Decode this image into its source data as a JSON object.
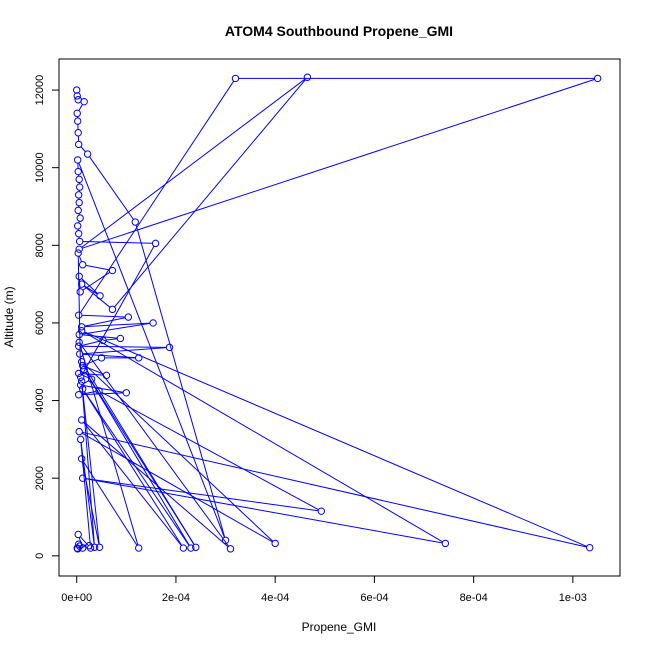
{
  "chart_data": {
    "type": "scatter",
    "title": "ATOM4 Southbound Propene_GMI",
    "xlabel": "Propene_GMI",
    "ylabel": "Altitude (m)",
    "xlim": [
      -3.57e-05,
      0.001095
    ],
    "ylim": [
      -520,
      12800
    ],
    "x_ticks": [
      {
        "value": 0,
        "label": "0e+00"
      },
      {
        "value": 0.0002,
        "label": "2e-04"
      },
      {
        "value": 0.0004,
        "label": "4e-04"
      },
      {
        "value": 0.0006,
        "label": "6e-04"
      },
      {
        "value": 0.0008,
        "label": "8e-04"
      },
      {
        "value": 0.001,
        "label": "1e-03"
      }
    ],
    "y_ticks": [
      {
        "value": 0,
        "label": "0"
      },
      {
        "value": 2000,
        "label": "2000"
      },
      {
        "value": 4000,
        "label": "4000"
      },
      {
        "value": 6000,
        "label": "6000"
      },
      {
        "value": 8000,
        "label": "8000"
      },
      {
        "value": 10000,
        "label": "10000"
      },
      {
        "value": 12000,
        "label": "12000"
      }
    ],
    "series": [
      {
        "color": "#0000ff",
        "marker": "open-circle",
        "connected": true,
        "points": [
          [
            0.0,
            12000
          ],
          [
            1e-06,
            11850
          ],
          [
            3e-06,
            11750
          ],
          [
            1.5e-05,
            11700
          ],
          [
            1e-06,
            11400
          ],
          [
            2e-06,
            11200
          ],
          [
            3e-06,
            10900
          ],
          [
            4e-06,
            10600
          ],
          [
            2.2e-05,
            10350
          ],
          [
            0.000118,
            8600
          ],
          [
            0.0003,
            400
          ],
          [
            2e-06,
            10200
          ],
          [
            3e-06,
            9900
          ],
          [
            5e-06,
            9700
          ],
          [
            6e-06,
            9500
          ],
          [
            4e-06,
            9300
          ],
          [
            5e-06,
            9100
          ],
          [
            3e-06,
            8900
          ],
          [
            7e-06,
            8700
          ],
          [
            2e-06,
            8500
          ],
          [
            4e-06,
            8300
          ],
          [
            6e-06,
            8100
          ],
          [
            0.000159,
            8050
          ],
          [
            8e-06,
            4600
          ],
          [
            3e-06,
            7800
          ],
          [
            1.2e-05,
            7500
          ],
          [
            7.2e-05,
            7350
          ],
          [
            7e-06,
            6800
          ],
          [
            5e-06,
            7200
          ],
          [
            4.7e-05,
            6700
          ],
          [
            1e-05,
            7000
          ],
          [
            7.2e-05,
            6350
          ],
          [
            0.000465,
            12330
          ],
          [
            5e-06,
            7900
          ],
          [
            0.00105,
            12300
          ],
          [
            0.00032,
            12300
          ],
          [
            4e-06,
            6200
          ],
          [
            0.000104,
            6150
          ],
          [
            1e-05,
            5900
          ],
          [
            0.000154,
            6000
          ],
          [
            5e-06,
            5700
          ],
          [
            8.8e-05,
            5600
          ],
          [
            5.3e-05,
            5550
          ],
          [
            4e-06,
            5400
          ],
          [
            0.000187,
            5370
          ],
          [
            6e-06,
            5200
          ],
          [
            0.000125,
            5100
          ],
          [
            5e-05,
            5100
          ],
          [
            1.2e-05,
            4900
          ],
          [
            6e-05,
            4650
          ],
          [
            4e-06,
            4700
          ],
          [
            3e-05,
            4550
          ],
          [
            8e-06,
            4400
          ],
          [
            0.0001,
            4200
          ],
          [
            4e-06,
            4150
          ],
          [
            4.5e-05,
            4250
          ],
          [
            0.000493,
            1150
          ],
          [
            1.2e-05,
            2000
          ],
          [
            0.000743,
            320
          ],
          [
            1e-05,
            5800
          ],
          [
            0.001034,
            210
          ],
          [
            5e-06,
            3200
          ],
          [
            0.0004,
            320
          ],
          [
            1e-05,
            5000
          ],
          [
            0.00024,
            220
          ],
          [
            1.5e-05,
            4800
          ],
          [
            0.00023,
            200
          ],
          [
            1.2e-05,
            4300
          ],
          [
            0.000215,
            200
          ],
          [
            1e-05,
            3500
          ],
          [
            0.00031,
            180
          ],
          [
            5e-06,
            5500
          ],
          [
            0.000125,
            200
          ],
          [
            1e-05,
            2500
          ],
          [
            4.6e-05,
            220
          ],
          [
            1e-05,
            4500
          ],
          [
            3.6e-05,
            220
          ],
          [
            8e-06,
            3000
          ],
          [
            2.8e-05,
            200
          ],
          [
            3e-06,
            550
          ],
          [
            1.2e-05,
            200
          ],
          [
            4e-06,
            300
          ],
          [
            2.5e-05,
            260
          ],
          [
            1e-06,
            200
          ],
          [
            6e-06,
            250
          ],
          [
            2e-06,
            180
          ]
        ]
      }
    ]
  }
}
